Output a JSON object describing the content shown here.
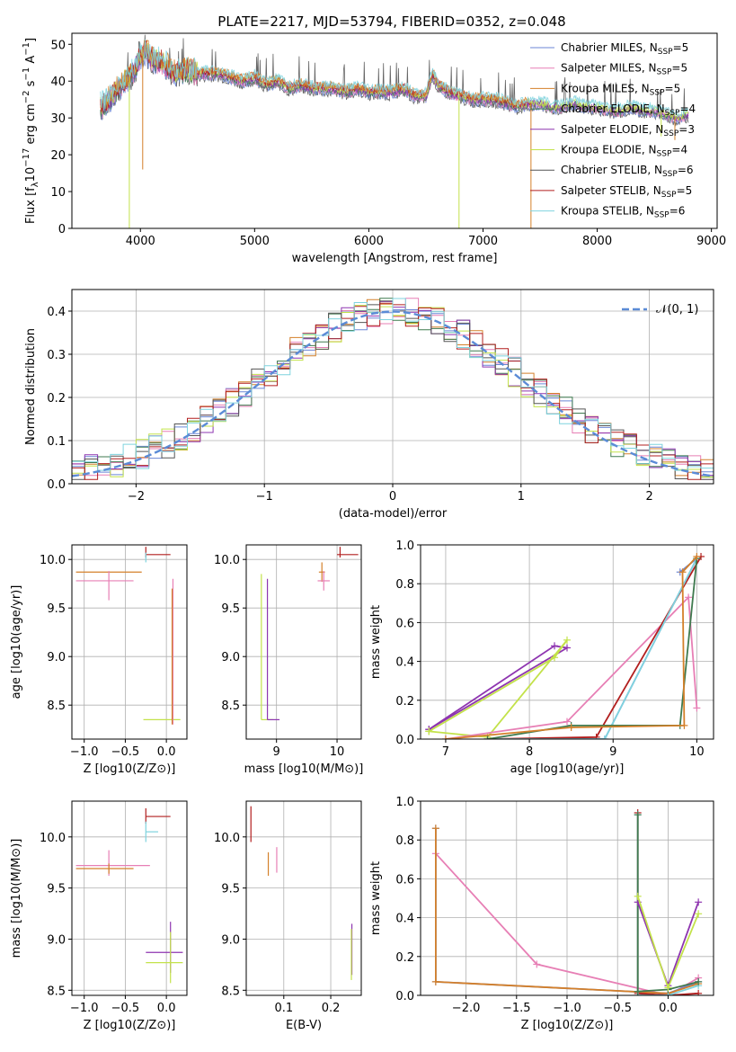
{
  "figure_title": "PLATE=2217, MJD=53794, FIBERID=0352, z=0.048",
  "legend": [
    {
      "label": "Chabrier MILES, N",
      "sub": "SSP",
      "eq": "=5",
      "color": "#6b86d6"
    },
    {
      "label": "Salpeter MILES, N",
      "sub": "SSP",
      "eq": "=5",
      "color": "#e77fb5"
    },
    {
      "label": "Kroupa MILES, N",
      "sub": "SSP",
      "eq": "=5",
      "color": "#d4802a"
    },
    {
      "label": "Chabrier ELODIE, N",
      "sub": "SSP",
      "eq": "=4",
      "color": "#3f7a4f"
    },
    {
      "label": "Salpeter ELODIE, N",
      "sub": "SSP",
      "eq": "=3",
      "color": "#8e35b0"
    },
    {
      "label": "Kroupa ELODIE, N",
      "sub": "SSP",
      "eq": "=4",
      "color": "#c3e24a"
    },
    {
      "label": "Chabrier STELIB, N",
      "sub": "SSP",
      "eq": "=6",
      "color": "#555555"
    },
    {
      "label": "Salpeter STELIB, N",
      "sub": "SSP",
      "eq": "=5",
      "color": "#b21f1f"
    },
    {
      "label": "Kroupa STELIB, N",
      "sub": "SSP",
      "eq": "=6",
      "color": "#7fd3de"
    }
  ],
  "chart_data": [
    {
      "type": "line",
      "id": "spectrum",
      "xlabel": "wavelength [Angstrom, rest frame]",
      "ylabel_pre": "Flux [f",
      "ylabel_sub": "λ",
      "ylabel_mid": "10",
      "ylabel_sup1": "−17",
      "ylabel_post": " erg cm",
      "ylabel_sup2": "−2",
      "ylabel_mid2": " s",
      "ylabel_sup3": "−1",
      "ylabel_mid3": " A",
      "ylabel_sup4": "−1",
      "ylabel_end": "]",
      "xlim": [
        3400,
        9050
      ],
      "ylim": [
        0,
        53
      ],
      "xticks": [
        4000,
        5000,
        6000,
        7000,
        8000,
        9000
      ],
      "yticks": [
        0,
        10,
        20,
        30,
        40,
        50
      ],
      "grid": false,
      "legend_position": "top-right",
      "series": [
        {
          "x": [
            3650,
            3700,
            3800,
            3900,
            3950,
            4000,
            4050,
            4100,
            4200,
            4300,
            4400,
            4500,
            4600,
            4700,
            4800,
            4900,
            5000,
            5100,
            5200,
            5300,
            5400,
            5500,
            5600,
            5700,
            5800,
            5900,
            6000,
            6100,
            6200,
            6300,
            6400,
            6500,
            6560,
            6600,
            6700,
            6800,
            6900,
            7000,
            7100,
            7200,
            7300,
            7400,
            7500,
            7600,
            7700,
            7800,
            7900,
            8000,
            8100,
            8200,
            8300,
            8400,
            8500,
            8600,
            8700,
            8800
          ],
          "y": [
            33,
            34,
            38,
            41,
            43,
            47,
            48,
            46,
            45,
            42,
            43,
            42,
            42,
            42,
            41,
            40,
            41,
            39,
            40,
            38,
            39,
            38,
            38,
            38,
            37,
            38,
            37,
            37,
            37,
            38,
            36,
            36,
            42,
            39,
            37,
            36,
            35,
            35,
            35,
            34,
            33,
            34,
            34,
            33,
            33,
            34,
            33,
            33,
            32,
            32,
            33,
            32,
            32,
            31,
            30,
            31
          ]
        }
      ],
      "absorption_dips": [
        {
          "x": 3903,
          "y": 0
        },
        {
          "x": 4020,
          "y": 16
        },
        {
          "x": 6790,
          "y": 0
        },
        {
          "x": 7420,
          "y": 0
        },
        {
          "x": 8560,
          "y": 25
        },
        {
          "x": 8680,
          "y": 24
        }
      ]
    },
    {
      "type": "histogram",
      "id": "residuals",
      "xlabel": "(data-model)/error",
      "ylabel": "Normed distribution",
      "xlim": [
        -2.5,
        2.5
      ],
      "ylim": [
        0,
        0.45
      ],
      "xticks": [
        -2,
        -1,
        0,
        1,
        2
      ],
      "xtick_labels": [
        "−2",
        "−1",
        "0",
        "1",
        "2"
      ],
      "yticks": [
        0.0,
        0.1,
        0.2,
        0.3,
        0.4
      ],
      "ytick_labels": [
        "0.0",
        "0.1",
        "0.2",
        "0.3",
        "0.4"
      ],
      "grid": true,
      "legend_position": "top-right",
      "reference_curve": {
        "label": "𝒩(0, 1)",
        "mean": 0,
        "sigma": 1,
        "color": "#5b8bd6"
      },
      "bin_width": 0.1
    },
    {
      "type": "scatter",
      "id": "age-vs-Z",
      "xlabel": "Z [log10(Z/Z⊙)]",
      "ylabel": "age  [log10(age/yr)]",
      "xlim": [
        -1.15,
        0.25
      ],
      "ylim": [
        8.15,
        10.15
      ],
      "xticks": [
        -1.0,
        -0.5,
        0.0
      ],
      "xtick_labels": [
        "−1.0",
        "−0.5",
        "0.0"
      ],
      "yticks": [
        8.5,
        9.0,
        9.5,
        10.0
      ],
      "ytick_labels": [
        "8.5",
        "9.0",
        "9.5",
        "10.0"
      ],
      "grid": true,
      "crosses": [
        {
          "x": -0.7,
          "y": 9.87,
          "xerr": [
            0.4,
            0.4
          ],
          "yerr": [
            0.0,
            0.0
          ],
          "color": 2
        },
        {
          "x": -0.7,
          "y": 9.78,
          "xerr": [
            0.4,
            0.3
          ],
          "yerr": [
            0.2,
            0.1
          ],
          "color": 1
        },
        {
          "x": -0.25,
          "y": 10.05,
          "xerr": [
            0.0,
            0.3
          ],
          "yerr": [
            0.03,
            0.08
          ],
          "color": 7
        },
        {
          "x": -0.25,
          "y": 10.02,
          "xerr": [
            0.0,
            0.0
          ],
          "yerr": [
            0.05,
            0.05
          ],
          "color": 8
        },
        {
          "x": 0.07,
          "y": 8.35,
          "xerr": [
            0.35,
            0.1
          ],
          "yerr": [
            0.0,
            0.0
          ],
          "color": 5
        },
        {
          "x": 0.08,
          "y": 9.0,
          "xerr": [
            0.0,
            0.0
          ],
          "yerr": [
            0.7,
            0.8
          ],
          "color": 1
        },
        {
          "x": 0.07,
          "y": 9.0,
          "xerr": [
            0.0,
            0.0
          ],
          "yerr": [
            0.7,
            0.7
          ],
          "color": 2
        }
      ]
    },
    {
      "type": "scatter",
      "id": "age-vs-mass",
      "xlabel": "mass [log10(M/M⊙)]",
      "ylabel": "",
      "xlim": [
        8.5,
        10.4
      ],
      "ylim": [
        8.15,
        10.15
      ],
      "xticks": [
        9,
        10
      ],
      "xtick_labels": [
        "9",
        "10"
      ],
      "yticks": [
        8.5,
        9.0,
        9.5,
        10.0
      ],
      "ytick_labels": [
        "8.5",
        "9.0",
        "9.5",
        "10.0"
      ],
      "grid": true,
      "crosses": [
        {
          "x": 8.75,
          "y": 8.35,
          "xerr": [
            0.0,
            0.2
          ],
          "yerr": [
            0.0,
            1.5
          ],
          "color": 5
        },
        {
          "x": 8.85,
          "y": 8.35,
          "xerr": [
            0.0,
            0.2
          ],
          "yerr": [
            0.0,
            1.45
          ],
          "color": 4
        },
        {
          "x": 9.75,
          "y": 9.87,
          "xerr": [
            0.05,
            0.05
          ],
          "yerr": [
            0.1,
            0.1
          ],
          "color": 2
        },
        {
          "x": 9.78,
          "y": 9.78,
          "xerr": [
            0.1,
            0.1
          ],
          "yerr": [
            0.1,
            0.1
          ],
          "color": 1
        },
        {
          "x": 10.05,
          "y": 10.05,
          "xerr": [
            0.05,
            0.3
          ],
          "yerr": [
            0.03,
            0.08
          ],
          "color": 7
        }
      ]
    },
    {
      "type": "line",
      "id": "weight-vs-age",
      "xlabel": "age  [log10(age/yr)]",
      "ylabel": "mass weight",
      "xlim": [
        6.7,
        10.2
      ],
      "ylim": [
        0,
        1.0
      ],
      "xticks": [
        7,
        8,
        9,
        10
      ],
      "yticks": [
        0.0,
        0.2,
        0.4,
        0.6,
        0.8,
        1.0
      ],
      "ytick_labels": [
        "0.0",
        "0.2",
        "0.4",
        "0.6",
        "0.8",
        "1.0"
      ],
      "grid": true,
      "series": [
        {
          "color": 4,
          "x": [
            6.8,
            8.3,
            8.45,
            6.8
          ],
          "y": [
            0.05,
            0.48,
            0.47,
            0.05
          ]
        },
        {
          "color": 5,
          "x": [
            6.8,
            8.3,
            8.45,
            7.5,
            6.8
          ],
          "y": [
            0.04,
            0.42,
            0.51,
            0.01,
            0.04
          ]
        },
        {
          "color": 1,
          "x": [
            7.0,
            8.45,
            9.9,
            10.0
          ],
          "y": [
            0.0,
            0.09,
            0.73,
            0.16
          ]
        },
        {
          "color": 0,
          "x": [
            7.5,
            8.9,
            10.0,
            9.8
          ],
          "y": [
            0.0,
            0.0,
            0.93,
            0.86
          ]
        },
        {
          "color": 7,
          "x": [
            7.5,
            8.8,
            10.05
          ],
          "y": [
            0.0,
            0.01,
            0.94
          ]
        },
        {
          "color": 8,
          "x": [
            7.5,
            8.9,
            10.0
          ],
          "y": [
            0.0,
            0.0,
            0.93
          ]
        },
        {
          "color": 3,
          "x": [
            7.5,
            8.5,
            9.8,
            10.0
          ],
          "y": [
            0.0,
            0.07,
            0.07,
            0.93
          ]
        },
        {
          "color": 2,
          "x": [
            7.0,
            8.5,
            9.85,
            9.83,
            10.0
          ],
          "y": [
            0.0,
            0.06,
            0.07,
            0.86,
            0.94
          ]
        }
      ]
    },
    {
      "type": "scatter",
      "id": "mass-vs-Z",
      "xlabel": "Z [log10(Z/Z⊙)]",
      "ylabel": "mass [log10(M/M⊙)]",
      "xlim": [
        -1.15,
        0.25
      ],
      "ylim": [
        8.45,
        10.35
      ],
      "xticks": [
        -1.0,
        -0.5,
        0.0
      ],
      "xtick_labels": [
        "−1.0",
        "−0.5",
        "0.0"
      ],
      "yticks": [
        8.5,
        9.0,
        9.5,
        10.0
      ],
      "ytick_labels": [
        "8.5",
        "9.0",
        "9.5",
        "10.0"
      ],
      "grid": true,
      "crosses": [
        {
          "x": -0.7,
          "y": 9.72,
          "xerr": [
            0.4,
            0.5
          ],
          "yerr": [
            0.1,
            0.15
          ],
          "color": 1
        },
        {
          "x": -0.7,
          "y": 9.69,
          "xerr": [
            0.4,
            0.3
          ],
          "yerr": [
            0.05,
            0.05
          ],
          "color": 2
        },
        {
          "x": -0.25,
          "y": 10.2,
          "xerr": [
            0.0,
            0.3
          ],
          "yerr": [
            0.07,
            0.08
          ],
          "color": 7
        },
        {
          "x": -0.25,
          "y": 10.05,
          "xerr": [
            0.0,
            0.15
          ],
          "yerr": [
            0.1,
            0.1
          ],
          "color": 8
        },
        {
          "x": 0.05,
          "y": 8.87,
          "xerr": [
            0.3,
            0.15
          ],
          "yerr": [
            0.2,
            0.3
          ],
          "color": 4
        },
        {
          "x": 0.05,
          "y": 8.77,
          "xerr": [
            0.3,
            0.15
          ],
          "yerr": [
            0.2,
            0.3
          ],
          "color": 5
        }
      ]
    },
    {
      "type": "scatter",
      "id": "mass-vs-EBV",
      "xlabel": "E(B-V)",
      "ylabel": "",
      "xlim": [
        0.02,
        0.265
      ],
      "ylim": [
        8.45,
        10.35
      ],
      "xticks": [
        0.1,
        0.2
      ],
      "xtick_labels": [
        "0.1",
        "0.2"
      ],
      "yticks": [
        8.5,
        9.0,
        9.5,
        10.0
      ],
      "ytick_labels": [
        "8.5",
        "9.0",
        "9.5",
        "10.0"
      ],
      "grid": true,
      "crosses": [
        {
          "x": 0.03,
          "y": 10.1,
          "xerr": [
            0.0,
            0.0
          ],
          "yerr": [
            0.15,
            0.2
          ],
          "color": 7
        },
        {
          "x": 0.067,
          "y": 9.7,
          "xerr": [
            0.0,
            0.0
          ],
          "yerr": [
            0.08,
            0.15
          ],
          "color": 2
        },
        {
          "x": 0.085,
          "y": 9.75,
          "xerr": [
            0.0,
            0.0
          ],
          "yerr": [
            0.1,
            0.15
          ],
          "color": 1
        },
        {
          "x": 0.245,
          "y": 8.85,
          "xerr": [
            0.0,
            0.0
          ],
          "yerr": [
            0.2,
            0.3
          ],
          "color": 4
        },
        {
          "x": 0.244,
          "y": 8.8,
          "xerr": [
            0.0,
            0.0
          ],
          "yerr": [
            0.2,
            0.3
          ],
          "color": 5
        }
      ]
    },
    {
      "type": "line",
      "id": "weight-vs-Z",
      "xlabel": "Z [log10(Z/Z⊙)]",
      "ylabel": "mass weight",
      "xlim": [
        -2.45,
        0.45
      ],
      "ylim": [
        0,
        1.0
      ],
      "xticks": [
        -2.0,
        -1.5,
        -1.0,
        -0.5,
        0.0
      ],
      "xtick_labels": [
        "−2.0",
        "−1.5",
        "−1.0",
        "−0.5",
        "0.0"
      ],
      "yticks": [
        0.0,
        0.2,
        0.4,
        0.6,
        0.8,
        1.0
      ],
      "ytick_labels": [
        "0.0",
        "0.2",
        "0.4",
        "0.6",
        "0.8",
        "1.0"
      ],
      "grid": true,
      "series": [
        {
          "color": 1,
          "x": [
            -2.3,
            -1.3,
            0.0,
            0.3
          ],
          "y": [
            0.73,
            0.16,
            0.0,
            0.09
          ]
        },
        {
          "color": 0,
          "x": [
            -2.3,
            -2.3,
            0.0,
            0.3
          ],
          "y": [
            0.86,
            0.07,
            0.01,
            0.07
          ]
        },
        {
          "color": 2,
          "x": [
            -2.3,
            -2.3,
            0.0,
            0.3
          ],
          "y": [
            0.86,
            0.07,
            0.01,
            0.06
          ]
        },
        {
          "color": 7,
          "x": [
            -0.3,
            -0.3,
            0.0,
            0.3
          ],
          "y": [
            0.94,
            0.01,
            0.0,
            0.01
          ]
        },
        {
          "color": 8,
          "x": [
            -0.3,
            -0.3,
            0.0,
            0.3
          ],
          "y": [
            0.93,
            0.0,
            0.0,
            0.05
          ]
        },
        {
          "color": 3,
          "x": [
            -0.3,
            -0.3,
            0.0,
            0.3
          ],
          "y": [
            0.93,
            0.02,
            0.03,
            0.07
          ]
        },
        {
          "color": 4,
          "x": [
            -0.3,
            0.0,
            0.3
          ],
          "y": [
            0.48,
            0.05,
            0.48
          ]
        },
        {
          "color": 5,
          "x": [
            -0.3,
            0.0,
            0.3
          ],
          "y": [
            0.51,
            0.04,
            0.42
          ]
        }
      ]
    }
  ]
}
